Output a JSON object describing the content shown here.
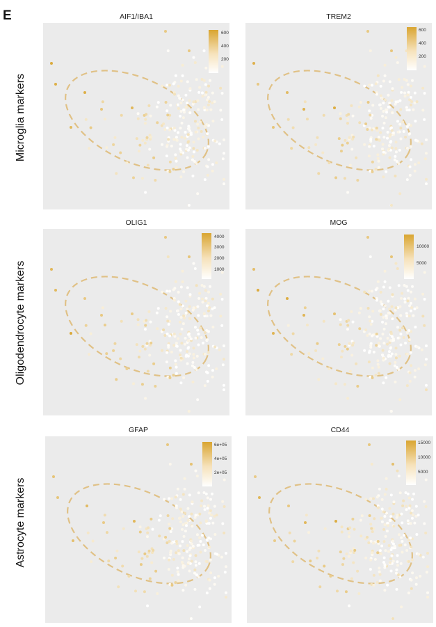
{
  "panel_letter": "E",
  "row_labels": [
    "Microglia markers",
    "Oligodendrocyte markers",
    "Astrocyte markers"
  ],
  "colors": {
    "panel_bg": "#ebebeb",
    "low": "#ffffff",
    "high": "#d9a531",
    "ellipse": "#e0c186"
  },
  "chart_data": [
    {
      "type": "scatter",
      "title": "AIF1/IBA1",
      "legend_ticks": [
        "600",
        "400",
        "200"
      ],
      "legend_max": 650
    },
    {
      "type": "scatter",
      "title": "TREM2",
      "legend_ticks": [
        "600",
        "400",
        "200"
      ],
      "legend_max": 650
    },
    {
      "type": "scatter",
      "title": "OLIG1",
      "legend_ticks": [
        "4000",
        "3000",
        "2000",
        "1000"
      ],
      "legend_max": 4300
    },
    {
      "type": "scatter",
      "title": "MOG",
      "legend_ticks": [
        "10000",
        "5000"
      ],
      "legend_max": 14000
    },
    {
      "type": "scatter",
      "title": "GFAP",
      "legend_ticks": [
        "6e+05",
        "4e+05",
        "2e+05"
      ],
      "legend_max": 650000
    },
    {
      "type": "scatter",
      "title": "CD44",
      "legend_ticks": [
        "15000",
        "10000",
        "5000"
      ],
      "legend_max": 16000
    }
  ]
}
